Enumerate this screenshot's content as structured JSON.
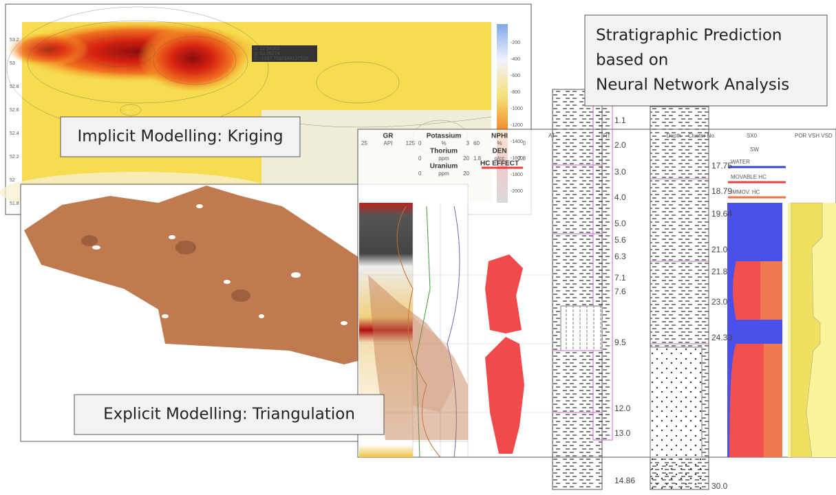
{
  "kriging": {
    "caption": "Implicit Modelling: Kriging",
    "y_labels": [
      "53.2",
      "53",
      "52.8",
      "52.6",
      "52.4",
      "52.2",
      "52",
      "51.8"
    ],
    "colorbar_labels": [
      "-200",
      "-400",
      "-600",
      "-800",
      "-1000",
      "-1200",
      "-1400",
      "-1600",
      "-1800",
      "-2000"
    ],
    "tooltip": [
      "x: 12.94863",
      "y: 53.06374",
      "z: -1297.7337344127526"
    ]
  },
  "triangulation": {
    "caption": "Explicit Modelling: Triangulation"
  },
  "prediction": {
    "caption": [
      "Stratigraphic Prediction",
      "based on",
      "Neural Network Analysis"
    ]
  },
  "logs": {
    "headers": {
      "gr": [
        "GR",
        "25",
        "API",
        "125"
      ],
      "potassium": [
        "Potassium",
        "0",
        "%",
        "3"
      ],
      "thorium": [
        "Thorium",
        "0",
        "ppm",
        "20"
      ],
      "uranium": [
        "Uranium",
        "0",
        "ppm",
        "20"
      ],
      "nphi": [
        "NPHI",
        "60",
        "%",
        "0"
      ],
      "den": [
        "DEN",
        "1.8",
        "g/cc",
        "2.8"
      ],
      "hc_effect": "HC EFFECT",
      "at": "AT",
      "rt": "RT",
      "depth": "Depth",
      "cluster": "Cluster No.",
      "sx0": "SX0",
      "sw": "SW",
      "por": "POR VSH VSD",
      "legend": [
        "WATER",
        "MOVABLE HC",
        "IMMOV. HC"
      ]
    },
    "well1_depths": [
      "1.1",
      "2.0",
      "3.0",
      "4.0",
      "5.0",
      "5.6",
      "6.3",
      "7.1",
      "7.6",
      "9.5",
      "12.0",
      "13.0",
      "14.86"
    ],
    "well2_depths": [
      "17.75",
      "18.79",
      "19.64",
      "21.0",
      "21.8",
      "23.0",
      "24.33",
      "30.0"
    ]
  }
}
